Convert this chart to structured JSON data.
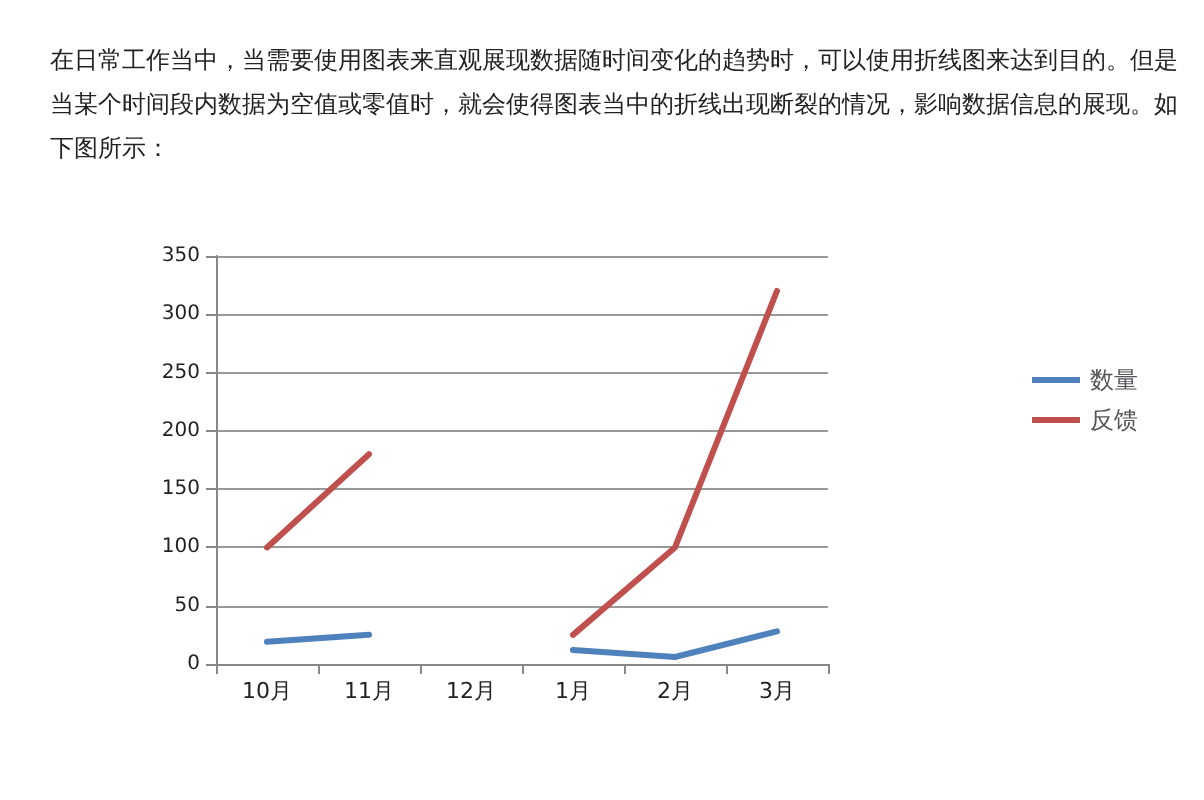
{
  "chart_data": {
    "type": "line",
    "title": "在日常工作当中，当需要使用图表来直观展现数据随时间变化的趋势时，可以使用折线图来达到目的。但是当某个时间段内数据为空值或零值时，就会使得图表当中的折线出现断裂的情况，影响数据信息的展现。如下图所示：",
    "categories": [
      "10月",
      "11月",
      "12月",
      "1月",
      "2月",
      "3月"
    ],
    "series": [
      {
        "name": "数量",
        "color": "#4f81bd",
        "values": [
          19,
          25,
          null,
          12,
          6,
          28
        ]
      },
      {
        "name": "反馈",
        "color": "#c0504d",
        "values": [
          100,
          180,
          null,
          25,
          100,
          320
        ]
      }
    ],
    "ylim": [
      0,
      350
    ],
    "yticks": [
      0,
      50,
      100,
      150,
      200,
      250,
      300,
      350
    ],
    "grid": "y",
    "legend": "right",
    "marker": "none",
    "line_style": "solid"
  }
}
